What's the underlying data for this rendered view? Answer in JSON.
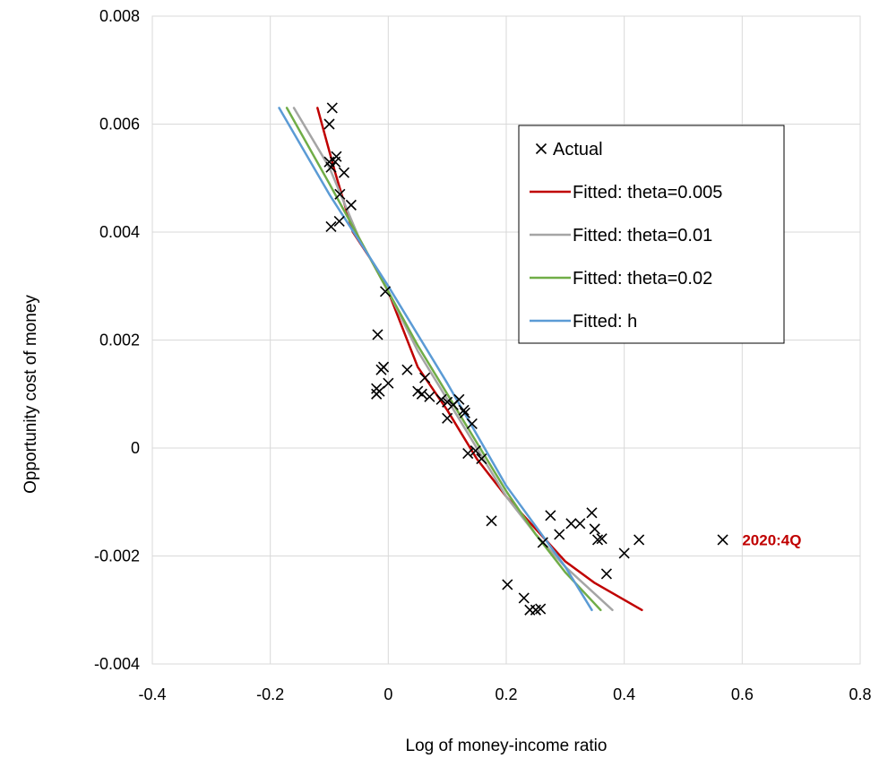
{
  "chart_data": {
    "type": "scatter",
    "xlabel": "Log of money-income ratio",
    "ylabel": "Opportunity cost of money",
    "xlim": [
      -0.4,
      0.8
    ],
    "ylim": [
      -0.004,
      0.008
    ],
    "x_ticks": [
      "-0.4",
      "-0.2",
      "0",
      "0.2",
      "0.4",
      "0.6",
      "0.8"
    ],
    "y_ticks": [
      "0.008",
      "0.006",
      "0.004",
      "0.002",
      "0",
      "-0.002",
      "-0.004"
    ],
    "grid": true,
    "legend_position": "top-right",
    "series": [
      {
        "name": "Actual",
        "kind": "markers",
        "marker": "x",
        "color": "#000000",
        "points": [
          [
            -0.095,
            0.0063
          ],
          [
            -0.1,
            0.006
          ],
          [
            -0.1,
            0.0053
          ],
          [
            -0.097,
            0.0052
          ],
          [
            -0.088,
            0.0054
          ],
          [
            -0.09,
            0.0053
          ],
          [
            -0.075,
            0.0051
          ],
          [
            -0.082,
            0.0047
          ],
          [
            -0.063,
            0.0045
          ],
          [
            -0.083,
            0.0042
          ],
          [
            -0.097,
            0.0041
          ],
          [
            -0.005,
            0.0029
          ],
          [
            -0.018,
            0.0021
          ],
          [
            -0.012,
            0.00145
          ],
          [
            -0.008,
            0.0015
          ],
          [
            0.0,
            0.0012
          ],
          [
            -0.02,
            0.0011
          ],
          [
            -0.02,
            0.001
          ],
          [
            -0.015,
            0.00105
          ],
          [
            0.032,
            0.00145
          ],
          [
            0.05,
            0.00105
          ],
          [
            0.057,
            0.001
          ],
          [
            0.062,
            0.0013
          ],
          [
            0.07,
            0.00095
          ],
          [
            0.09,
            0.0009
          ],
          [
            0.1,
            0.00085
          ],
          [
            0.1,
            0.00055
          ],
          [
            0.11,
            0.0008
          ],
          [
            0.12,
            0.0009
          ],
          [
            0.128,
            0.0007
          ],
          [
            0.13,
            0.00065
          ],
          [
            0.142,
            0.00045
          ],
          [
            0.135,
            -0.0001
          ],
          [
            0.148,
            -5e-05
          ],
          [
            0.158,
            -0.0002
          ],
          [
            0.175,
            -0.00135
          ],
          [
            0.262,
            -0.00175
          ],
          [
            0.275,
            -0.00125
          ],
          [
            0.29,
            -0.0016
          ],
          [
            0.31,
            -0.0014
          ],
          [
            0.325,
            -0.0014
          ],
          [
            0.345,
            -0.0012
          ],
          [
            0.35,
            -0.0015
          ],
          [
            0.355,
            -0.0017
          ],
          [
            0.362,
            -0.00168
          ],
          [
            0.37,
            -0.00233
          ],
          [
            0.4,
            -0.00195
          ],
          [
            0.425,
            -0.0017
          ],
          [
            0.202,
            -0.00253
          ],
          [
            0.23,
            -0.00278
          ],
          [
            0.24,
            -0.003
          ],
          [
            0.25,
            -0.003
          ],
          [
            0.258,
            -0.00298
          ],
          [
            0.567,
            -0.0017
          ]
        ]
      },
      {
        "name": "Fitted: theta=0.005",
        "kind": "line",
        "color": "#C00000",
        "points": [
          [
            -0.12,
            0.0063
          ],
          [
            -0.09,
            0.0051
          ],
          [
            -0.06,
            0.004
          ],
          [
            -0.03,
            0.0035
          ],
          [
            0.0,
            0.0029
          ],
          [
            0.05,
            0.0015
          ],
          [
            0.1,
            0.0007
          ],
          [
            0.15,
            -0.0002
          ],
          [
            0.2,
            -0.0009
          ],
          [
            0.25,
            -0.0015
          ],
          [
            0.3,
            -0.0021
          ],
          [
            0.35,
            -0.0025
          ],
          [
            0.43,
            -0.003
          ]
        ]
      },
      {
        "name": "Fitted: theta=0.01",
        "kind": "line",
        "color": "#A5A5A5",
        "points": [
          [
            -0.16,
            0.0063
          ],
          [
            -0.1,
            0.0052
          ],
          [
            -0.05,
            0.0039
          ],
          [
            0.0,
            0.0029
          ],
          [
            0.05,
            0.0018
          ],
          [
            0.1,
            0.0009
          ],
          [
            0.15,
            0.0
          ],
          [
            0.2,
            -0.0009
          ],
          [
            0.25,
            -0.0016
          ],
          [
            0.3,
            -0.0022
          ],
          [
            0.38,
            -0.003
          ]
        ]
      },
      {
        "name": "Fitted: theta=0.02",
        "kind": "line",
        "color": "#70AD47",
        "points": [
          [
            -0.172,
            0.0063
          ],
          [
            -0.1,
            0.0049
          ],
          [
            -0.05,
            0.0039
          ],
          [
            0.0,
            0.0029
          ],
          [
            0.05,
            0.0019
          ],
          [
            0.1,
            0.001
          ],
          [
            0.15,
            0.0001
          ],
          [
            0.2,
            -0.0008
          ],
          [
            0.25,
            -0.0016
          ],
          [
            0.3,
            -0.0023
          ],
          [
            0.36,
            -0.003
          ]
        ]
      },
      {
        "name": "Fitted: h",
        "kind": "line",
        "color": "#5B9BD5",
        "points": [
          [
            -0.185,
            0.0063
          ],
          [
            -0.1,
            0.0047
          ],
          [
            0.0,
            0.003
          ],
          [
            0.1,
            0.0012
          ],
          [
            0.2,
            -0.0007
          ],
          [
            0.3,
            -0.0022
          ],
          [
            0.345,
            -0.003
          ]
        ]
      }
    ],
    "annotations": [
      {
        "text": "2020:4Q",
        "x": 0.6,
        "y": -0.0017,
        "color": "#C00000"
      }
    ]
  }
}
